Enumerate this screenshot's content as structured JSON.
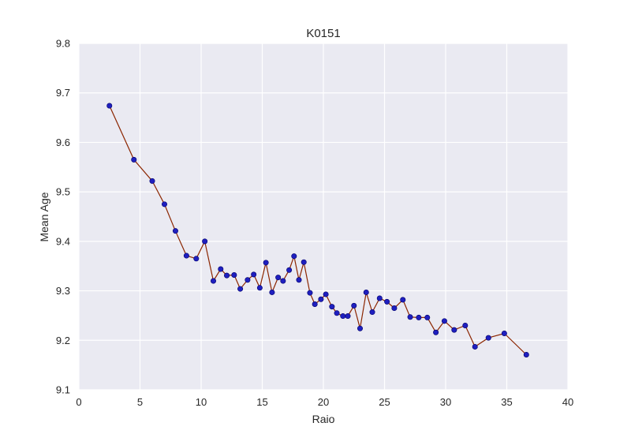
{
  "chart_data": {
    "type": "line",
    "title": "K0151",
    "xlabel": "Raio",
    "ylabel": "Mean Age",
    "xlim": [
      0,
      40
    ],
    "ylim": [
      9.1,
      9.8
    ],
    "xticks": [
      "0",
      "5",
      "10",
      "15",
      "20",
      "25",
      "30",
      "35",
      "40"
    ],
    "yticks": [
      "9.1",
      "9.2",
      "9.3",
      "9.4",
      "9.5",
      "9.6",
      "9.7",
      "9.8"
    ],
    "grid": true,
    "colors": {
      "background": "#eaeaf2",
      "grid": "#ffffff",
      "line": "#8b2500",
      "marker": "#1f1fbf",
      "marker_edge": "#00006a"
    },
    "series": [
      {
        "x": [
          2.5,
          4.5,
          6.0,
          7.0,
          7.9,
          8.8,
          9.6,
          10.3,
          11.0,
          11.6,
          12.1,
          12.7,
          13.2,
          13.8,
          14.3,
          14.8,
          15.3,
          15.8,
          16.3,
          16.7,
          17.2,
          17.6,
          18.0,
          18.4,
          18.9,
          19.3,
          19.8,
          20.2,
          20.7,
          21.1,
          21.6,
          22.0,
          22.5,
          23.0,
          23.5,
          24.0,
          24.6,
          25.2,
          25.8,
          26.5,
          27.1,
          27.8,
          28.5,
          29.2,
          29.9,
          30.7,
          31.6,
          32.4,
          33.5,
          34.8,
          36.6
        ],
        "y": [
          9.674,
          9.565,
          9.522,
          9.475,
          9.421,
          9.371,
          9.365,
          9.4,
          9.32,
          9.344,
          9.331,
          9.332,
          9.304,
          9.322,
          9.333,
          9.306,
          9.357,
          9.297,
          9.327,
          9.32,
          9.342,
          9.37,
          9.322,
          9.358,
          9.296,
          9.273,
          9.283,
          9.293,
          9.268,
          9.255,
          9.249,
          9.249,
          9.27,
          9.224,
          9.297,
          9.257,
          9.285,
          9.278,
          9.265,
          9.282,
          9.247,
          9.246,
          9.246,
          9.216,
          9.239,
          9.221,
          9.23,
          9.187,
          9.205,
          9.214,
          9.171
        ]
      }
    ]
  }
}
